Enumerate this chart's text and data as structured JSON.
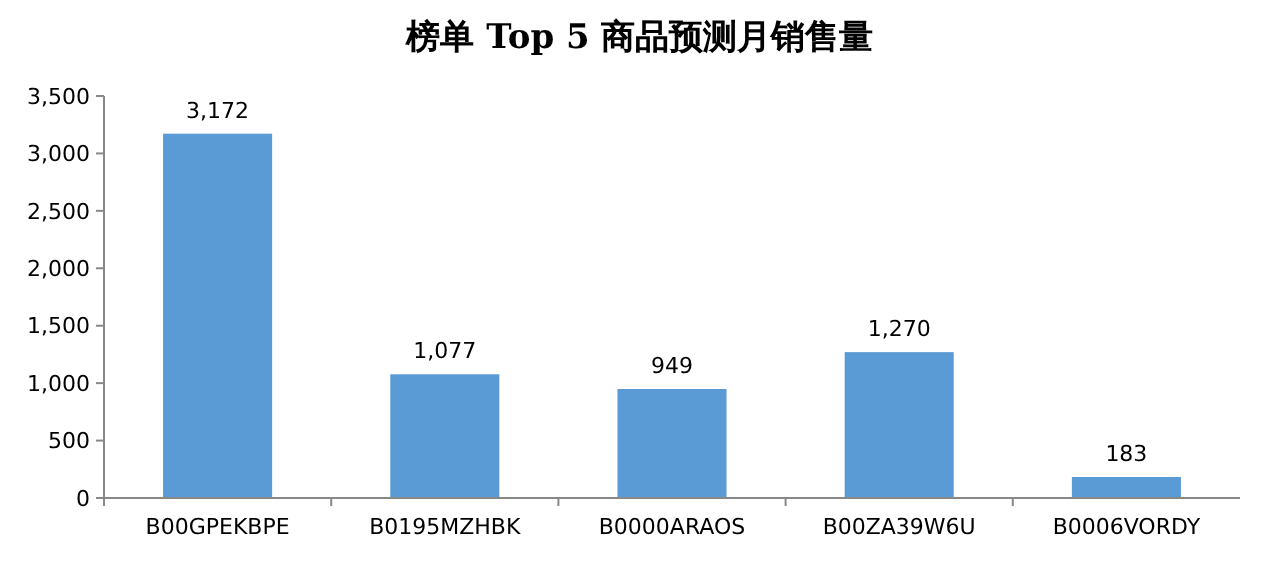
{
  "chart_data": {
    "type": "bar",
    "title": "榜单 Top 5 商品预测月销售量",
    "categories": [
      "B00GPEKBPE",
      "B0195MZHBK",
      "B0000ARAOS",
      "B00ZA39W6U",
      "B0006VORDY"
    ],
    "values": [
      3172,
      1077,
      949,
      1270,
      183
    ],
    "color": "#5b9bd5",
    "ylim": [
      0,
      3500
    ],
    "yticks": [
      {
        "value": 0,
        "label": "0"
      },
      {
        "value": 500,
        "label": "500"
      },
      {
        "value": 1000,
        "label": "1,000"
      },
      {
        "value": 1500,
        "label": "1,500"
      },
      {
        "value": 2000,
        "label": "2,000"
      },
      {
        "value": 2500,
        "label": "2,500"
      },
      {
        "value": 3000,
        "label": "3,000"
      },
      {
        "value": 3500,
        "label": "3,500"
      }
    ],
    "value_labels": [
      "3,172",
      "1,077",
      "949",
      "1,270",
      "183"
    ]
  }
}
